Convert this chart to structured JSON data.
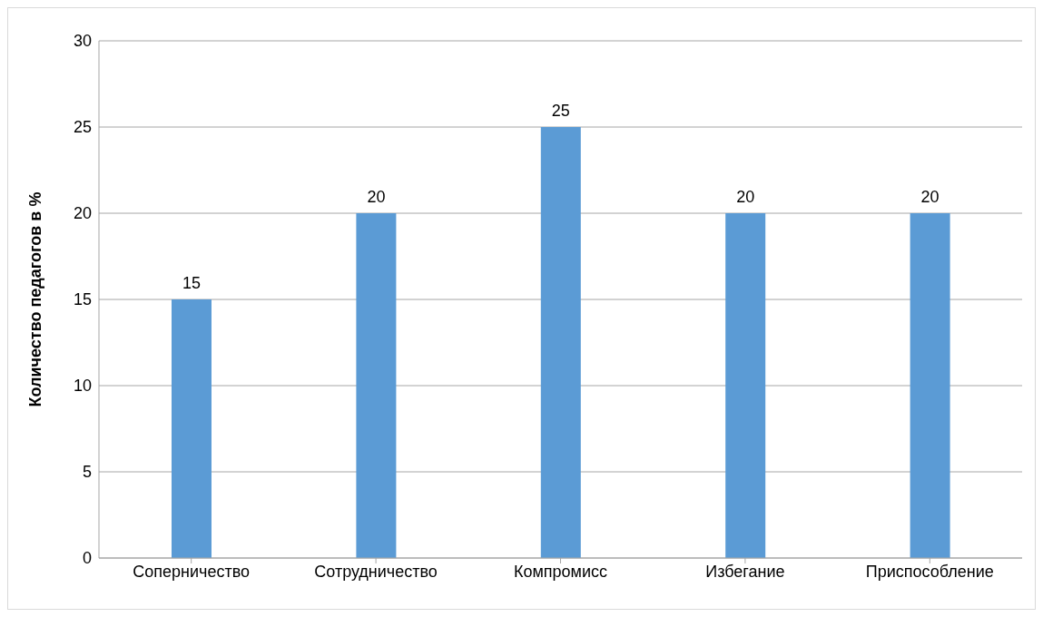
{
  "chart_data": {
    "type": "bar",
    "ylabel": "Количество педагогов в %",
    "categories": [
      "Соперничество",
      "Сотрудничество",
      "Компромисс",
      "Избегание",
      "Приспособление"
    ],
    "values": [
      15,
      20,
      25,
      20,
      20
    ],
    "color": "#5b9bd5",
    "ylim": [
      0,
      30
    ],
    "yticks": [
      0,
      5,
      10,
      15,
      20,
      25,
      30
    ],
    "grid": "y",
    "data_labels": true
  }
}
